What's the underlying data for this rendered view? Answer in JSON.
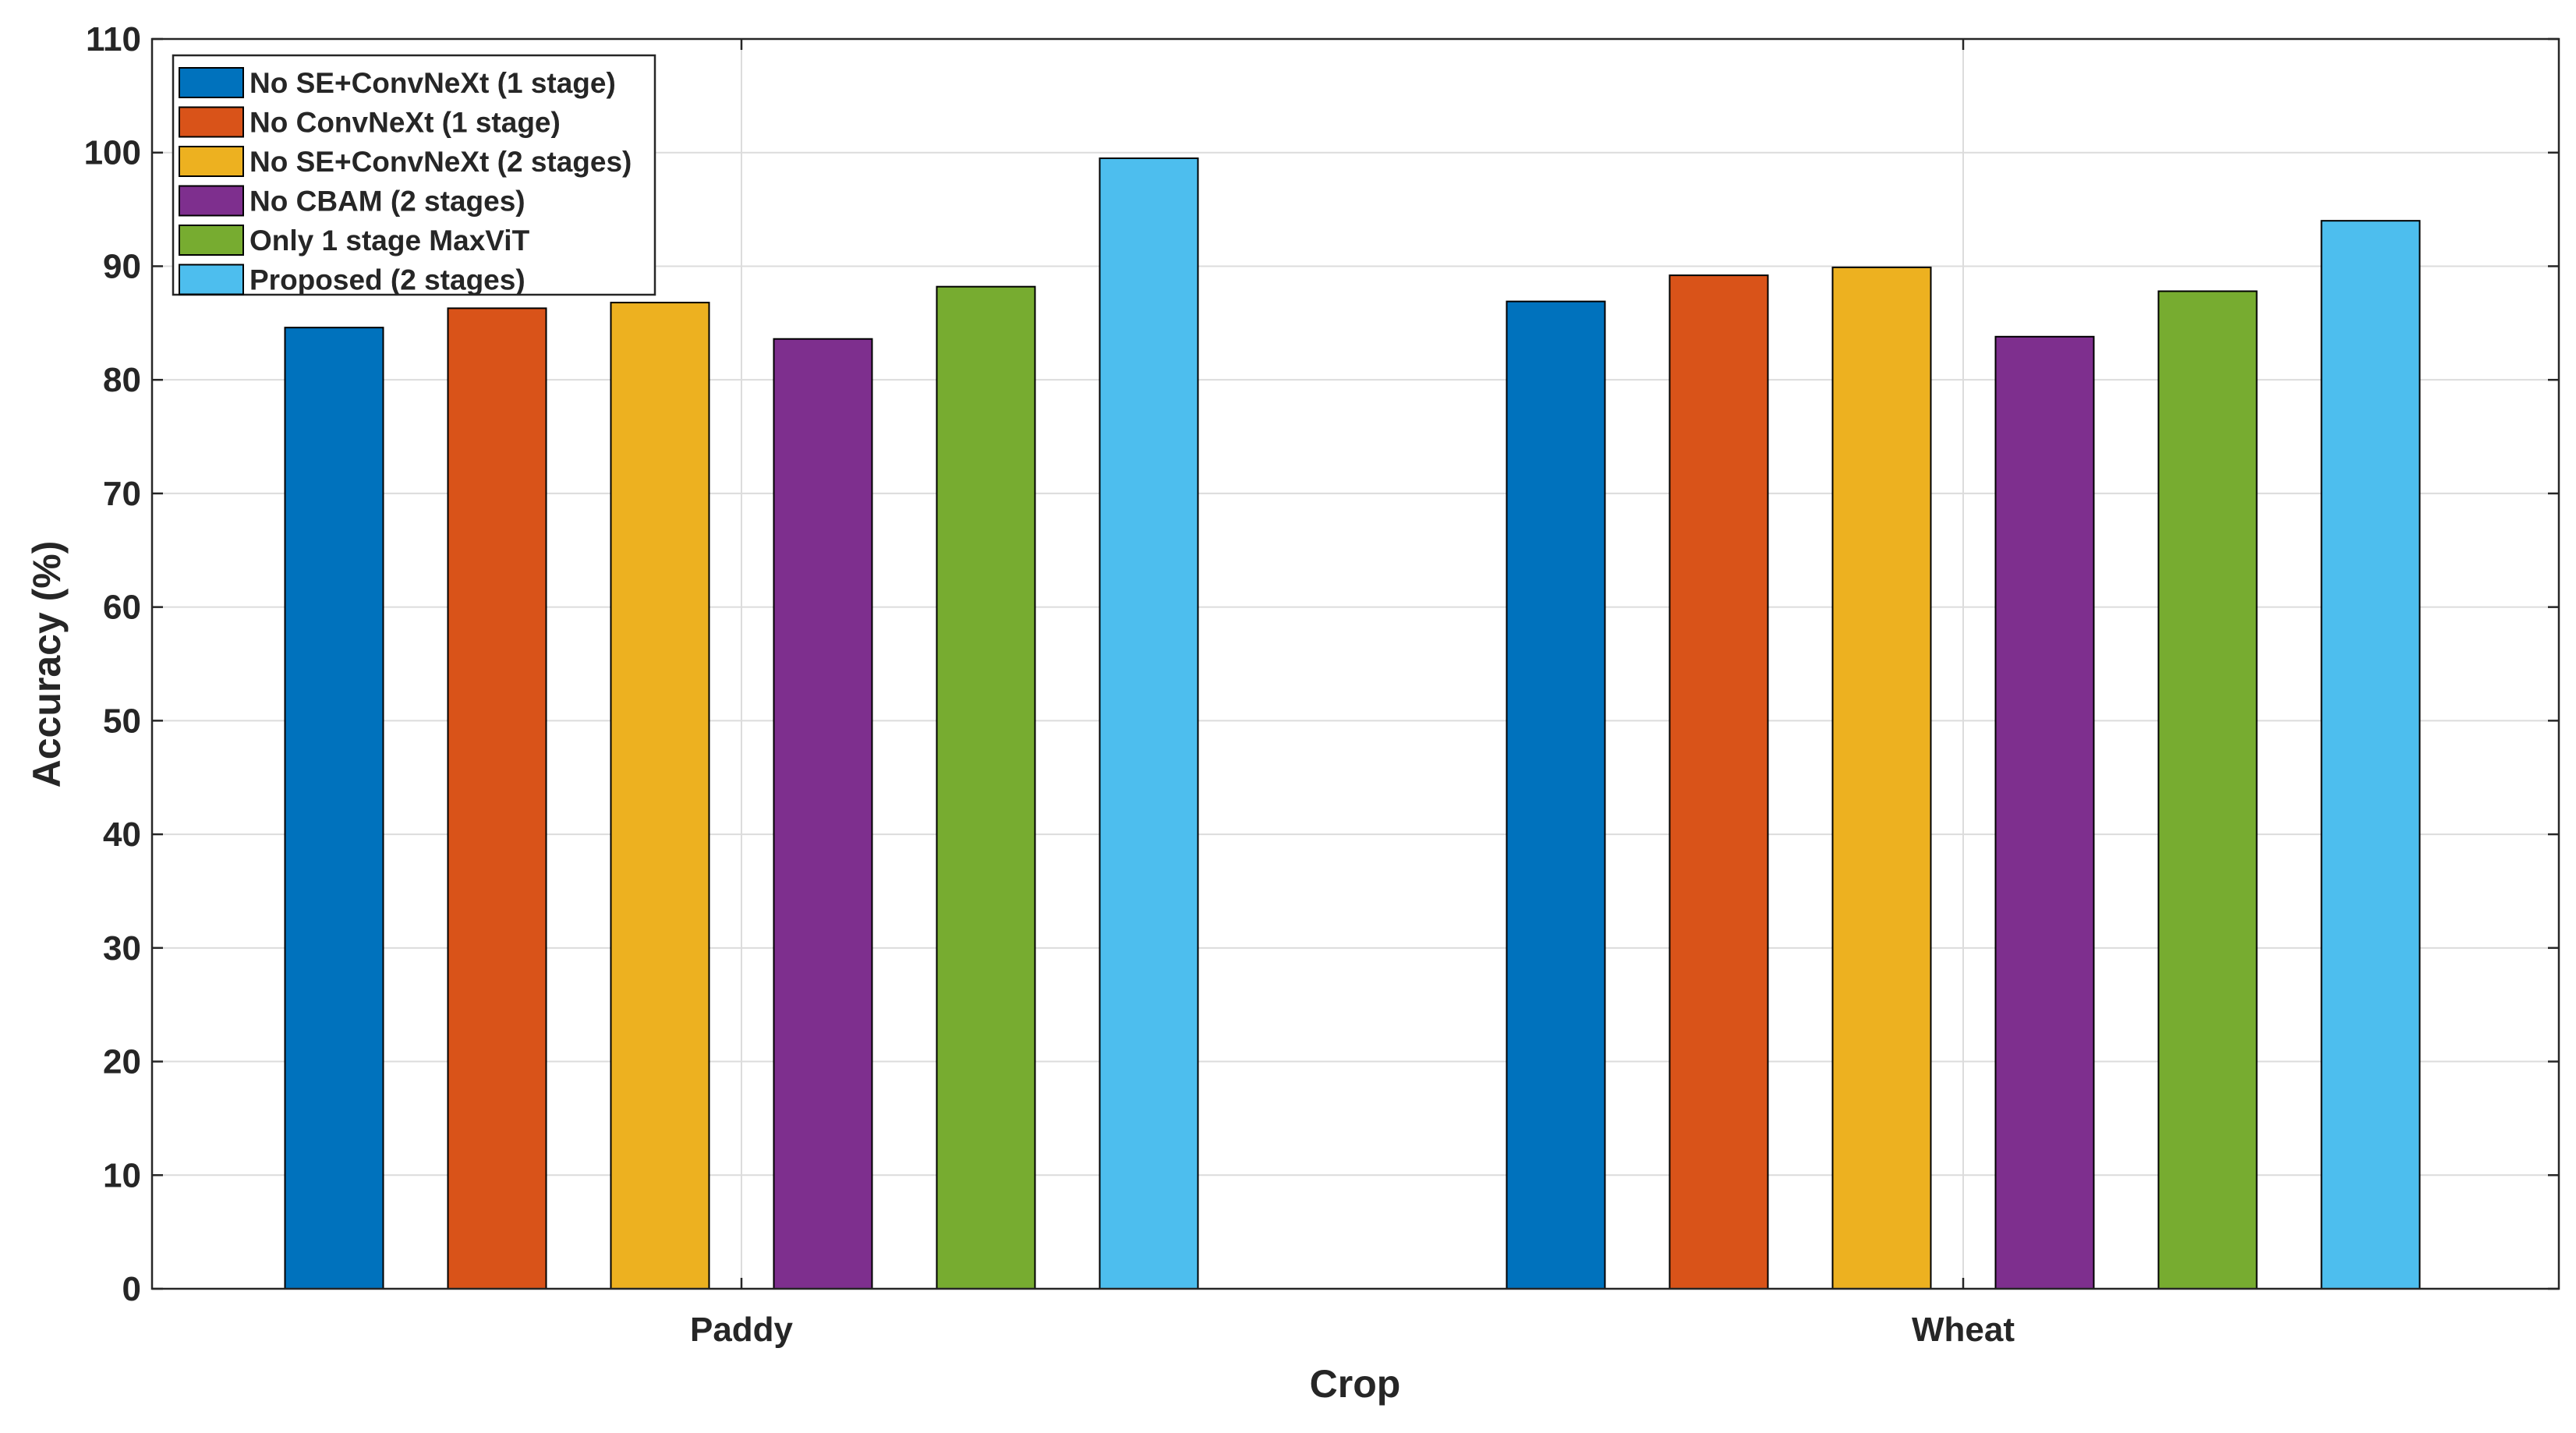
{
  "chart_data": {
    "type": "bar",
    "title": "",
    "xlabel": "Crop",
    "ylabel": "Accuracy (%)",
    "categories": [
      "Paddy",
      "Wheat"
    ],
    "ylim": [
      0,
      110
    ],
    "yticks": [
      0,
      10,
      20,
      30,
      40,
      50,
      60,
      70,
      80,
      90,
      100,
      110
    ],
    "grid": true,
    "legend_position": "top-left",
    "series": [
      {
        "name": "No SE+ConvNeXt (1 stage)",
        "color": "#0072BD",
        "values": [
          84.6,
          86.9
        ]
      },
      {
        "name": "No ConvNeXt (1 stage)",
        "color": "#D95319",
        "values": [
          86.3,
          89.2
        ]
      },
      {
        "name": "No SE+ConvNeXt (2 stages)",
        "color": "#EDB120",
        "values": [
          86.8,
          89.9
        ]
      },
      {
        "name": "No CBAM (2 stages)",
        "color": "#7E2F8E",
        "values": [
          83.6,
          83.8
        ]
      },
      {
        "name": "Only 1 stage MaxViT",
        "color": "#77AC30",
        "values": [
          88.2,
          87.8
        ]
      },
      {
        "name": "Proposed (2 stages)",
        "color": "#4DBEEE",
        "values": [
          99.5,
          94.0
        ]
      }
    ]
  }
}
